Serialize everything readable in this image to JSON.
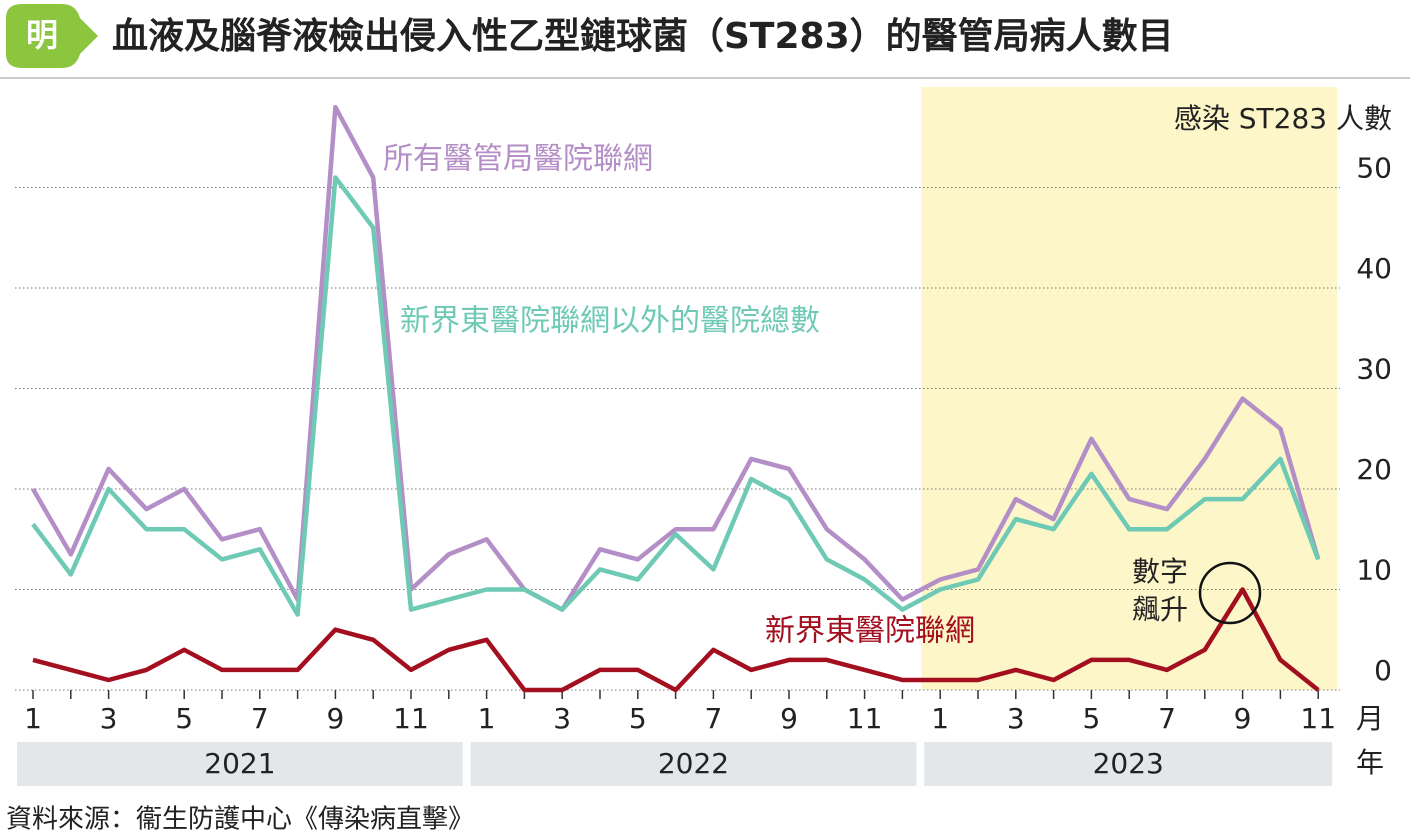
{
  "title": "血液及腦脊液檢出侵入性乙型鏈球菌（ST283）的醫管局病人數目",
  "logo": "明",
  "source": "資料來源：衞生防護中心《傳染病直擊》",
  "chart_data": {
    "type": "line",
    "y_label": "感染 ST283 人數",
    "x_label": "月",
    "group_label": "年",
    "years": [
      "2021",
      "2022",
      "2023"
    ],
    "categories": [
      "1",
      null,
      "3",
      null,
      "5",
      null,
      "7",
      null,
      "9",
      null,
      "11",
      null,
      "1",
      null,
      "3",
      null,
      "5",
      null,
      "7",
      null,
      "9",
      null,
      "11",
      null,
      "1",
      null,
      "3",
      null,
      "5",
      null,
      "7",
      null,
      "9",
      null,
      "11"
    ],
    "ylim": [
      0,
      60
    ],
    "yticks": [
      0,
      10,
      20,
      30,
      40,
      50
    ],
    "grid": true,
    "series": [
      {
        "name": "所有醫管局醫院聯網",
        "color": "#b48ec6",
        "values": [
          20,
          13.5,
          22,
          18,
          20,
          15,
          16,
          9,
          58,
          51,
          10,
          13.5,
          15,
          10,
          8,
          14,
          13,
          16,
          16,
          23,
          22,
          16,
          13,
          9,
          11,
          12,
          19,
          17,
          25,
          19,
          18,
          23,
          29,
          26,
          13
        ]
      },
      {
        "name": "新界東醫院聯網以外的醫院總數",
        "color": "#6ec9b5",
        "values": [
          16.5,
          11.5,
          20,
          16,
          16,
          13,
          14,
          7.5,
          51,
          46,
          8,
          9,
          10,
          10,
          8,
          12,
          11,
          15.5,
          12,
          21,
          19,
          13,
          11,
          8,
          10,
          11,
          17,
          16,
          21.5,
          16,
          16,
          19,
          19,
          23,
          13
        ]
      },
      {
        "name": "新界東醫院聯網",
        "color": "#a30f1f",
        "values": [
          3,
          2,
          1,
          2,
          4,
          2,
          2,
          2,
          6,
          5,
          2,
          4,
          5,
          0,
          0,
          2,
          2,
          0,
          4,
          2,
          3,
          3,
          2,
          1,
          1,
          1,
          2,
          1,
          3,
          3,
          2,
          4,
          10,
          3,
          0
        ]
      }
    ],
    "annotation": [
      "數字",
      "飆升"
    ]
  }
}
